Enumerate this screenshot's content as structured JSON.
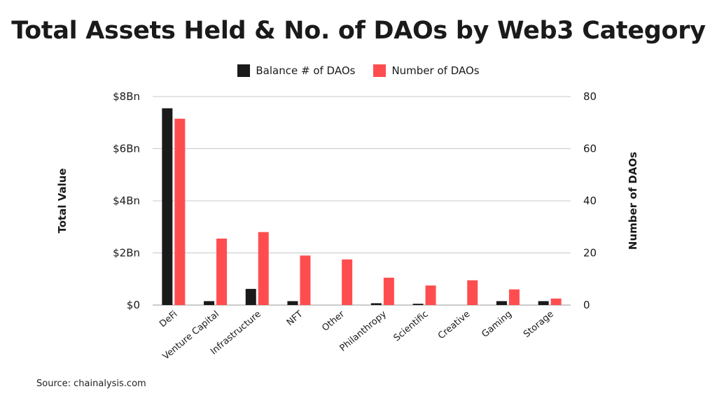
{
  "chart_data": {
    "type": "bar",
    "title": "Total Assets Held & No. of DAOs by Web3 Category",
    "categories": [
      "DeFi",
      "Venture Capital",
      "Infrastructure",
      "NFT",
      "Other",
      "Philanthropy",
      "Scientific",
      "Creative",
      "Gaming",
      "Storage"
    ],
    "series": [
      {
        "name": "Balance # of DAOs",
        "axis": "left",
        "color": "#1a1a1a",
        "values": [
          7.55,
          0.15,
          0.62,
          0.15,
          0.0,
          0.07,
          0.05,
          0.0,
          0.15,
          0.15
        ]
      },
      {
        "name": "Number of DAOs",
        "axis": "right",
        "color": "#ff4d4f",
        "values": [
          71.5,
          25.5,
          28,
          19,
          17.5,
          10.5,
          7.5,
          9.5,
          6,
          2.5
        ]
      }
    ],
    "ylabel": "Total Value",
    "y2label": "Number of DAOs",
    "ylim": [
      0,
      8
    ],
    "y2lim": [
      0,
      80
    ],
    "yticks": [
      "$0",
      "$2Bn",
      "$4Bn",
      "$6Bn",
      "$8Bn"
    ],
    "y2ticks": [
      "0",
      "20",
      "40",
      "60",
      "80"
    ],
    "grid": true,
    "legend": "top-center"
  },
  "source": "Source: chainalysis.com"
}
